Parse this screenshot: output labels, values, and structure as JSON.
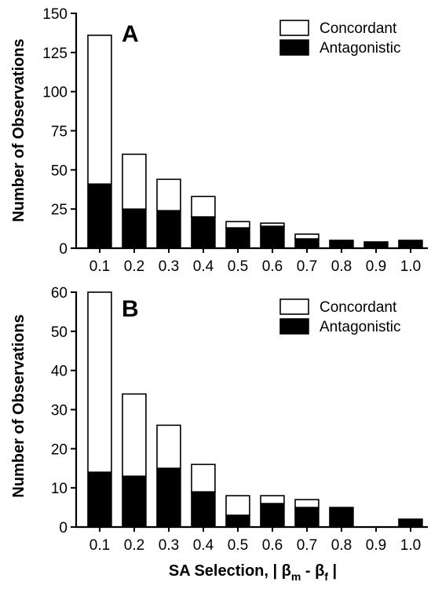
{
  "chart_data": [
    {
      "type": "bar",
      "stacked": true,
      "panel_label": "A",
      "categories": [
        "0.1",
        "0.2",
        "0.3",
        "0.4",
        "0.5",
        "0.6",
        "0.7",
        "0.8",
        "0.9",
        "1.0"
      ],
      "series": [
        {
          "name": "Antagonistic",
          "color": "#000000",
          "values": [
            41,
            25,
            24,
            20,
            13,
            14,
            6,
            5,
            4,
            5
          ]
        },
        {
          "name": "Concordant",
          "color": "#ffffff",
          "values": [
            95,
            35,
            20,
            13,
            4,
            2,
            3,
            0,
            0,
            0
          ]
        }
      ],
      "legend_order": [
        "Concordant",
        "Antagonistic"
      ],
      "legend_position": "top-right",
      "ylabel": "Number of Observations",
      "xlabel": "",
      "ylim": [
        0,
        150
      ],
      "yticks": [
        0,
        25,
        50,
        75,
        100,
        125,
        150
      ],
      "grid": false
    },
    {
      "type": "bar",
      "stacked": true,
      "panel_label": "B",
      "categories": [
        "0.1",
        "0.2",
        "0.3",
        "0.4",
        "0.5",
        "0.6",
        "0.7",
        "0.8",
        "0.9",
        "1.0"
      ],
      "series": [
        {
          "name": "Antagonistic",
          "color": "#000000",
          "values": [
            14,
            13,
            15,
            9,
            3,
            6,
            5,
            5,
            0,
            2
          ]
        },
        {
          "name": "Concordant",
          "color": "#ffffff",
          "values": [
            46,
            21,
            11,
            7,
            5,
            2,
            2,
            0,
            0,
            0
          ]
        }
      ],
      "legend_order": [
        "Concordant",
        "Antagonistic"
      ],
      "legend_position": "top-right",
      "ylabel": "Number of Observations",
      "xlabel": "SA Selection, | βm - βf |",
      "xlabel_parts": {
        "prefix": "SA Selection, | β",
        "sub1": "m",
        "mid": " - β",
        "sub2": "f",
        "suffix": " |"
      },
      "ylim": [
        0,
        60
      ],
      "yticks": [
        0,
        10,
        20,
        30,
        40,
        50,
        60
      ],
      "grid": false
    }
  ]
}
